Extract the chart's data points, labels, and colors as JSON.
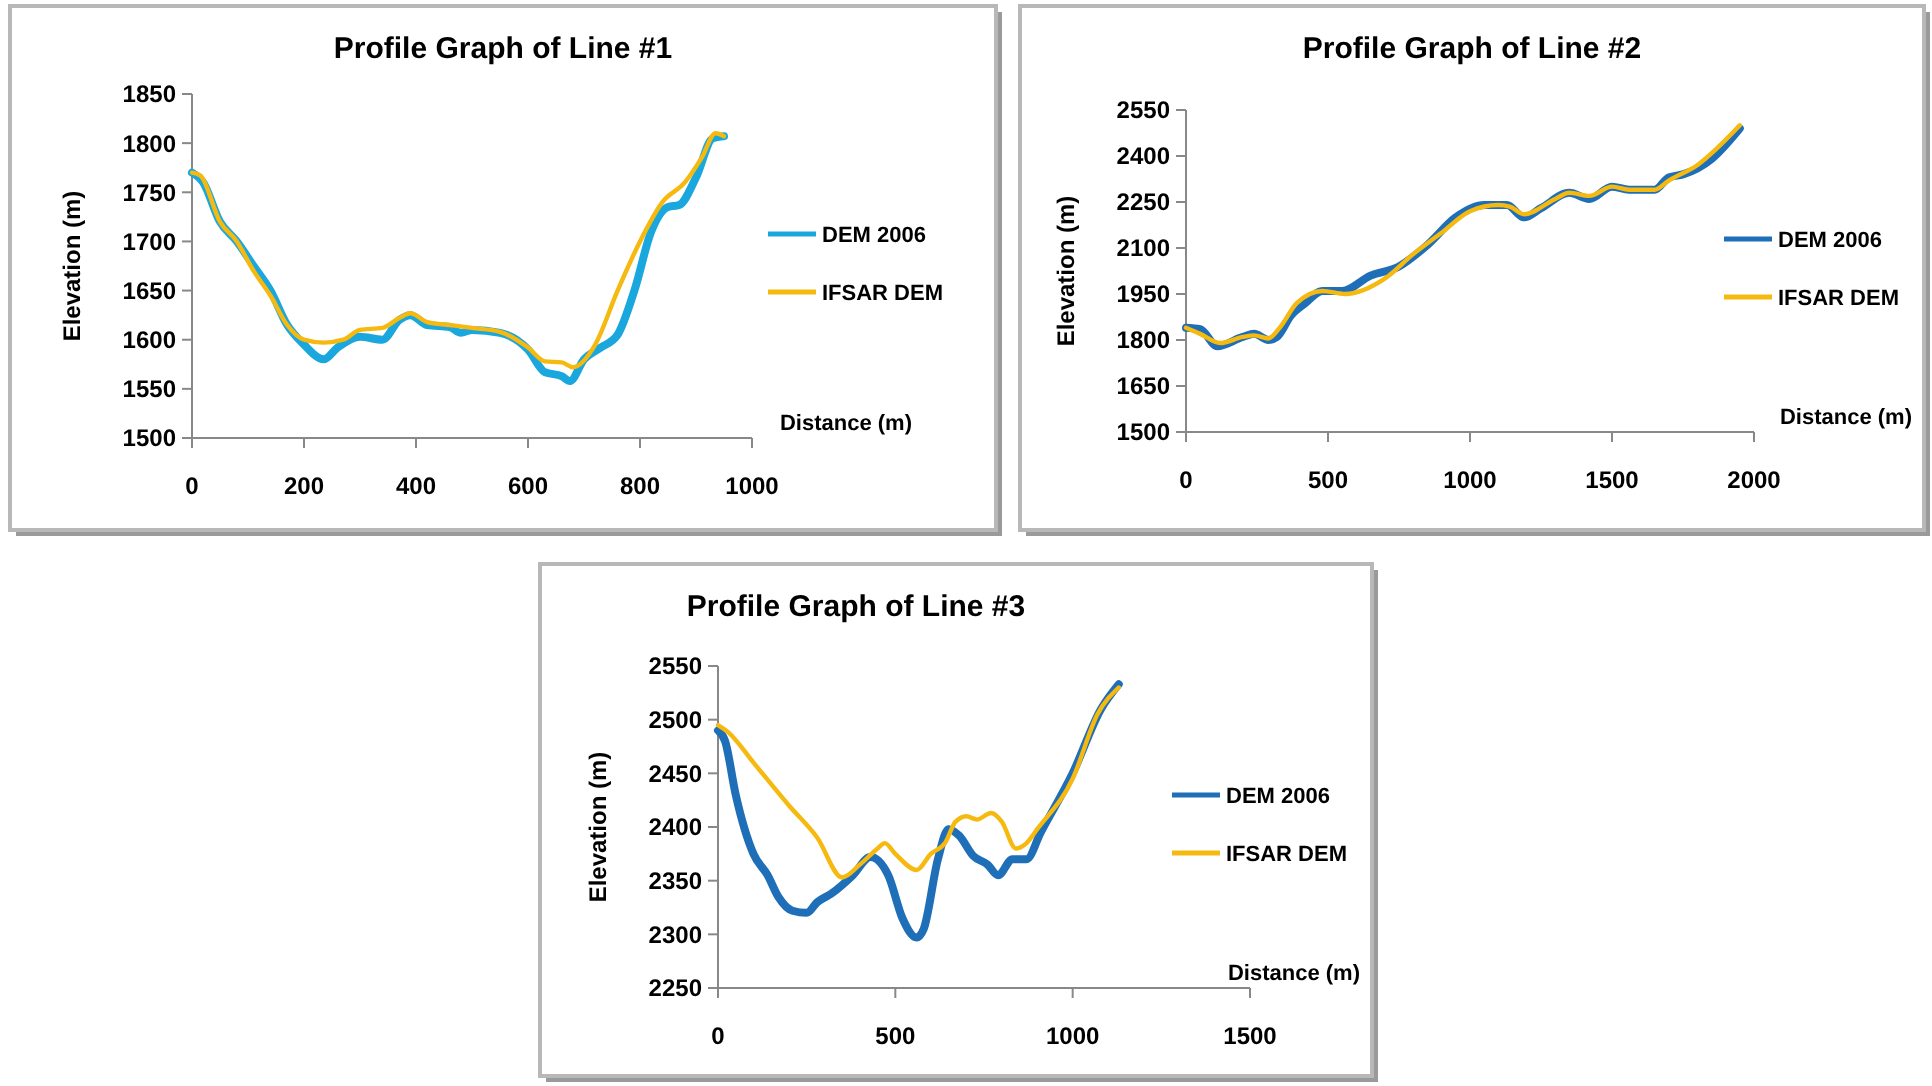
{
  "chart_data": [
    {
      "type": "line",
      "title": "Profile Graph of Line #1",
      "xlabel": "Distance (m)",
      "ylabel": "Elevation (m)",
      "xlim": [
        0,
        1000
      ],
      "xticks": [
        0,
        200,
        400,
        600,
        800,
        1000
      ],
      "ylim": [
        1500,
        1850
      ],
      "yticks": [
        1500,
        1550,
        1600,
        1650,
        1700,
        1750,
        1800,
        1850
      ],
      "grid": false,
      "legend": "right",
      "line_style": "solid",
      "series": [
        {
          "name": "DEM 2006",
          "color": "#1aa7de",
          "x": [
            0,
            20,
            50,
            80,
            110,
            140,
            170,
            200,
            235,
            260,
            300,
            340,
            370,
            390,
            420,
            460,
            480,
            500,
            550,
            600,
            630,
            660,
            675,
            700,
            730,
            760,
            790,
            820,
            850,
            870,
            900,
            930,
            950
          ],
          "values": [
            1770,
            1760,
            1720,
            1700,
            1675,
            1650,
            1615,
            1595,
            1580,
            1592,
            1603,
            1600,
            1620,
            1625,
            1615,
            1613,
            1607,
            1610,
            1607,
            1590,
            1567,
            1563,
            1558,
            1580,
            1592,
            1605,
            1650,
            1710,
            1735,
            1737,
            1765,
            1805,
            1807
          ]
        },
        {
          "name": "IFSAR DEM",
          "color": "#f5b90f",
          "x": [
            0,
            15,
            50,
            80,
            110,
            140,
            170,
            200,
            235,
            270,
            300,
            340,
            370,
            390,
            420,
            460,
            500,
            550,
            600,
            630,
            660,
            680,
            720,
            760,
            800,
            840,
            880,
            910,
            935,
            950
          ],
          "values": [
            1770,
            1767,
            1720,
            1700,
            1670,
            1645,
            1615,
            1600,
            1597,
            1600,
            1610,
            1612,
            1622,
            1627,
            1618,
            1615,
            1612,
            1608,
            1592,
            1578,
            1577,
            1572,
            1595,
            1650,
            1700,
            1740,
            1760,
            1785,
            1810,
            1807
          ]
        }
      ]
    },
    {
      "type": "line",
      "title": "Profile Graph of Line #2",
      "xlabel": "Distance (m)",
      "ylabel": "Elevation (m)",
      "xlim": [
        0,
        2000
      ],
      "xticks": [
        0,
        500,
        1000,
        1500,
        2000
      ],
      "ylim": [
        1500,
        2550
      ],
      "yticks": [
        1500,
        1650,
        1800,
        1950,
        2100,
        2250,
        2400,
        2550
      ],
      "grid": false,
      "legend": "right",
      "line_style": "solid",
      "series": [
        {
          "name": "DEM 2006",
          "color": "#1f6fb8",
          "x": [
            0,
            50,
            110,
            200,
            240,
            290,
            320,
            370,
            420,
            480,
            550,
            650,
            750,
            850,
            950,
            1050,
            1130,
            1190,
            1250,
            1350,
            1420,
            1500,
            1560,
            1650,
            1700,
            1750,
            1850,
            1950
          ],
          "values": [
            1840,
            1835,
            1780,
            1810,
            1820,
            1800,
            1810,
            1880,
            1920,
            1960,
            1960,
            2010,
            2040,
            2110,
            2200,
            2240,
            2240,
            2200,
            2230,
            2280,
            2260,
            2300,
            2290,
            2290,
            2330,
            2340,
            2390,
            2490
          ]
        },
        {
          "name": "IFSAR DEM",
          "color": "#f5b90f",
          "x": [
            0,
            50,
            120,
            200,
            240,
            290,
            330,
            390,
            480,
            560,
            700,
            800,
            900,
            1000,
            1100,
            1140,
            1190,
            1300,
            1350,
            1420,
            1500,
            1560,
            1650,
            1700,
            1800,
            1950
          ],
          "values": [
            1840,
            1820,
            1790,
            1810,
            1815,
            1805,
            1840,
            1920,
            1960,
            1950,
            2000,
            2080,
            2150,
            2220,
            2240,
            2235,
            2210,
            2260,
            2280,
            2270,
            2300,
            2290,
            2290,
            2320,
            2370,
            2500
          ]
        }
      ]
    },
    {
      "type": "line",
      "title": "Profile Graph of Line #3",
      "xlabel": "Distance (m)",
      "ylabel": "Elevation (m)",
      "xlim": [
        0,
        1500
      ],
      "xticks": [
        0,
        500,
        1000,
        1500
      ],
      "ylim": [
        2250,
        2550
      ],
      "yticks": [
        2250,
        2300,
        2350,
        2400,
        2450,
        2500,
        2550
      ],
      "grid": false,
      "legend": "right",
      "line_style": "solid",
      "series": [
        {
          "name": "DEM 2006",
          "color": "#1f6fb8",
          "x": [
            0,
            20,
            50,
            100,
            140,
            170,
            210,
            250,
            280,
            320,
            380,
            430,
            480,
            520,
            560,
            580,
            620,
            650,
            680,
            720,
            760,
            790,
            830,
            870,
            910,
            1000,
            1080,
            1130
          ],
          "values": [
            2490,
            2480,
            2430,
            2375,
            2355,
            2335,
            2322,
            2320,
            2330,
            2338,
            2355,
            2372,
            2355,
            2315,
            2297,
            2305,
            2370,
            2398,
            2392,
            2373,
            2365,
            2355,
            2370,
            2370,
            2395,
            2450,
            2510,
            2533
          ]
        },
        {
          "name": "IFSAR DEM",
          "color": "#f5b90f",
          "x": [
            0,
            30,
            100,
            200,
            280,
            350,
            400,
            450,
            470,
            500,
            560,
            600,
            640,
            670,
            700,
            730,
            770,
            800,
            840,
            870,
            900,
            1000,
            1070,
            1130
          ],
          "values": [
            2495,
            2488,
            2460,
            2420,
            2390,
            2353,
            2365,
            2380,
            2385,
            2375,
            2360,
            2375,
            2385,
            2405,
            2410,
            2407,
            2413,
            2405,
            2380,
            2385,
            2398,
            2445,
            2505,
            2530
          ]
        }
      ]
    }
  ]
}
